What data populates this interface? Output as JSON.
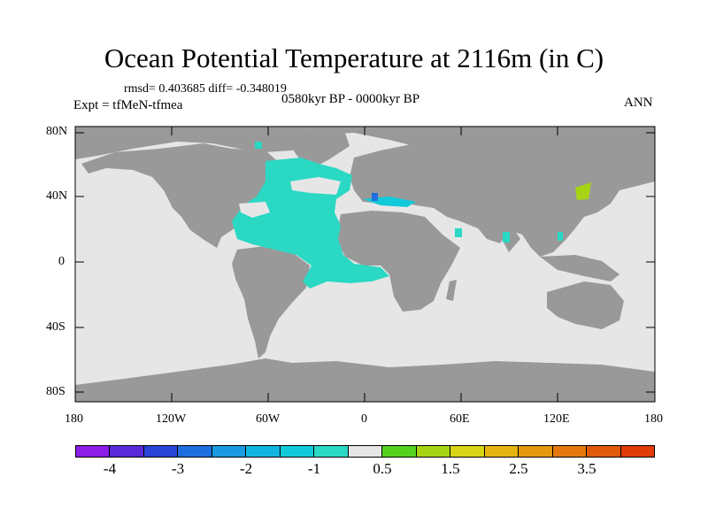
{
  "title": "Ocean Potential Temperature at 2116m (in C)",
  "stats": "rmsd= 0.403685 diff= -0.348019",
  "period": "0580kyr BP - 0000kyr BP",
  "experiment": "Expt = tfMeN-tfmea",
  "season": "ANN",
  "axes": {
    "lat_labels": [
      "80N",
      "40N",
      "0",
      "40S",
      "80S"
    ],
    "lon_labels": [
      "180",
      "120W",
      "60W",
      "0",
      "60E",
      "120E",
      "180"
    ]
  },
  "legend": {
    "colors": [
      "#8c1ee8",
      "#5a2ad8",
      "#2a44d8",
      "#1f6ee0",
      "#1a9ae0",
      "#10b6e0",
      "#10cada",
      "#2ad8c4",
      "#e6e6e6",
      "#56d21e",
      "#a6d414",
      "#d8d416",
      "#e6b410",
      "#e6980e",
      "#e4780e",
      "#e05a0c",
      "#e03c0a"
    ],
    "labels": [
      "-4",
      "-3",
      "-2",
      "-1",
      "0.5",
      "1.5",
      "2.5",
      "3.5"
    ]
  },
  "colors": {
    "land": "#999999",
    "ocean_neutral": "#e6e6e6",
    "atlantic_anomaly": "#2ad8c4",
    "med_anomaly": "#1f6ee0",
    "japan_anomaly": "#a6d414"
  }
}
